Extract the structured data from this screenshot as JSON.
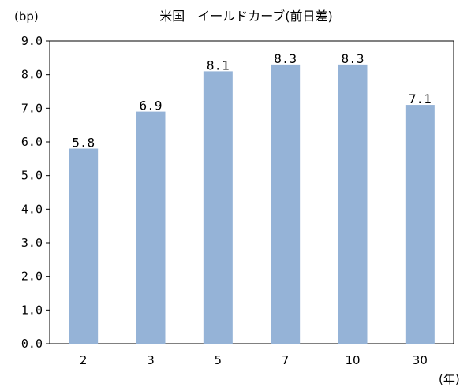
{
  "chart_data": {
    "type": "bar",
    "title": "米国　イールドカーブ(前日差)",
    "ylabel": "(bp)",
    "xlabel": "(年)",
    "categories": [
      "2",
      "3",
      "5",
      "7",
      "10",
      "30"
    ],
    "values": [
      5.8,
      6.9,
      8.1,
      8.3,
      8.3,
      7.1
    ],
    "data_labels": [
      "5.8",
      "6.9",
      "8.1",
      "8.3",
      "8.3",
      "7.1"
    ],
    "ylim": [
      0,
      9
    ],
    "yticks": [
      "0.0",
      "1.0",
      "2.0",
      "3.0",
      "4.0",
      "5.0",
      "6.0",
      "7.0",
      "8.0",
      "9.0"
    ],
    "grid": false,
    "bar_color": "#95b3d7"
  }
}
